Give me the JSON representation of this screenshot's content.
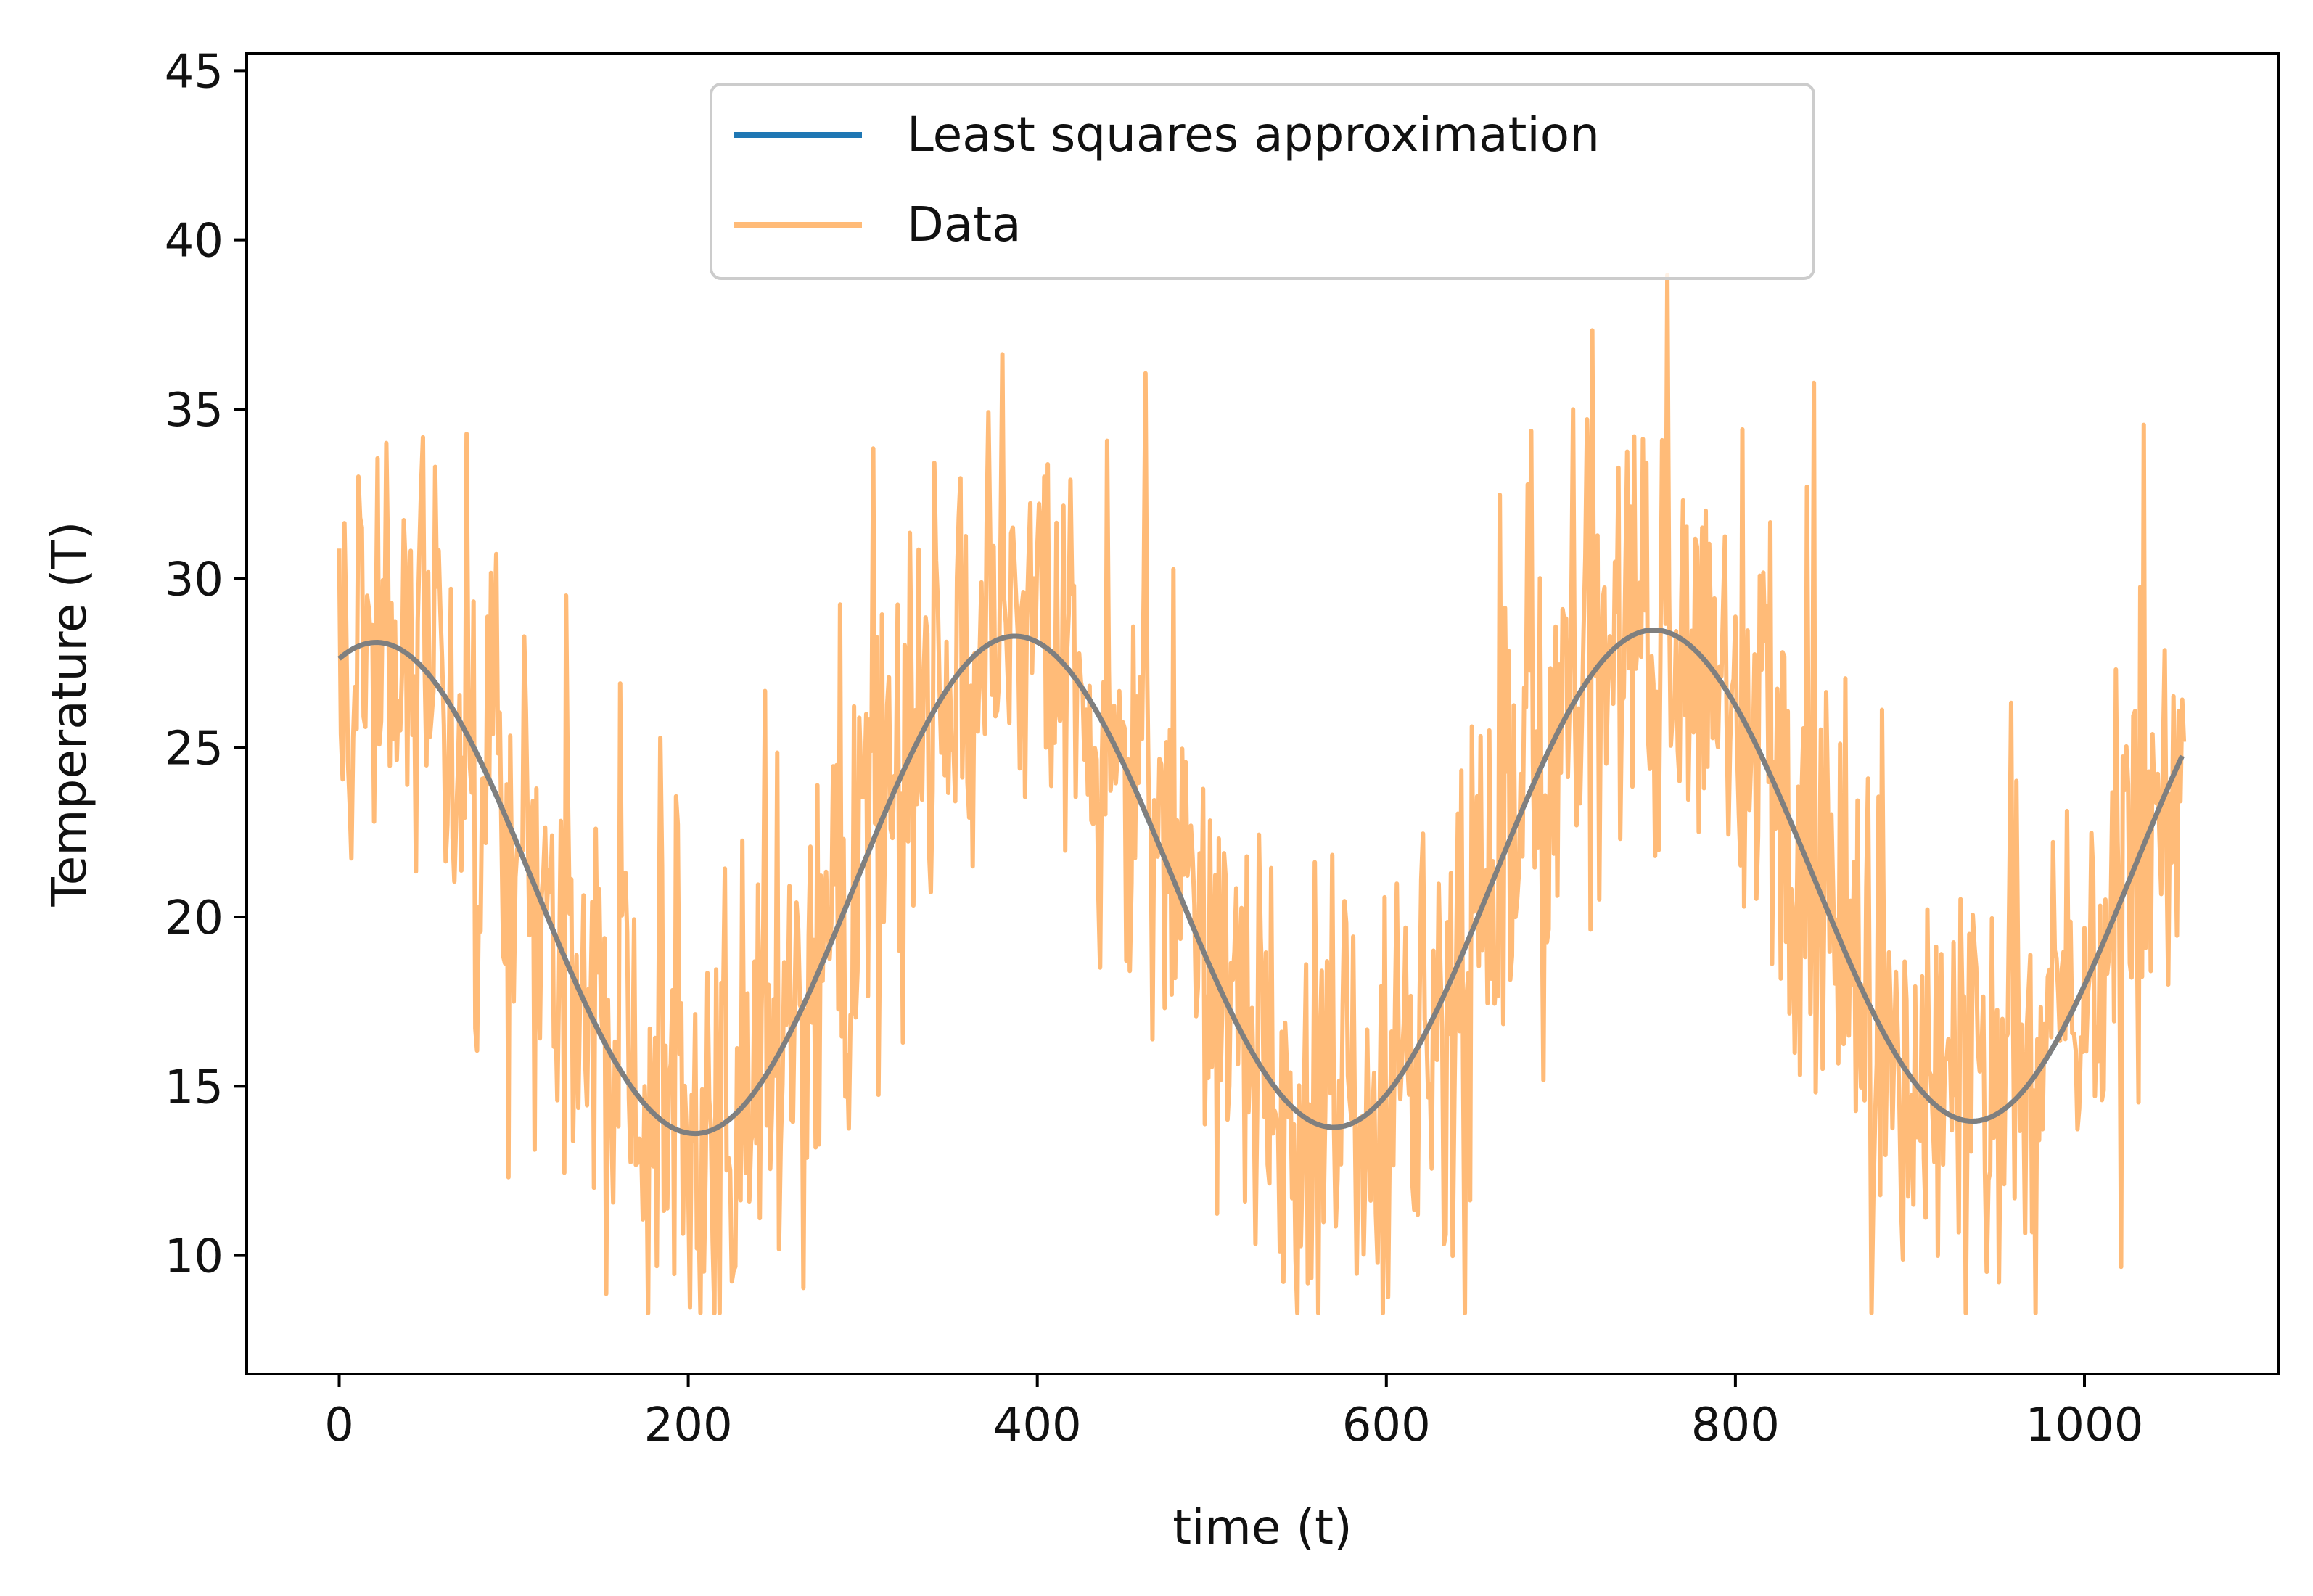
{
  "chart_data": {
    "type": "line",
    "title": "",
    "xlabel": "time (t)",
    "ylabel": "Temperature (T)",
    "xlim": [
      -53,
      1111
    ],
    "ylim": [
      6.5,
      45.5
    ],
    "x_ticks": [
      0,
      200,
      400,
      600,
      800,
      1000
    ],
    "x_tick_labels": [
      "0",
      "200",
      "400",
      "600",
      "800",
      "1000"
    ],
    "y_ticks": [
      10,
      15,
      20,
      25,
      30,
      35,
      40,
      45
    ],
    "y_tick_labels": [
      "10",
      "15",
      "20",
      "25",
      "30",
      "35",
      "40",
      "45"
    ],
    "legend_position": "top-center",
    "series": [
      {
        "name": "Least squares approximation",
        "color": "#1f77b4",
        "kind": "fit",
        "model": {
          "mean": 20.8,
          "amplitude": 7.3,
          "period": 366,
          "phase_peak_t": 21,
          "slope": 0.0005,
          "t_end": 1057
        },
        "x": [
          0,
          50,
          100,
          150,
          200,
          250,
          300,
          350,
          388,
          450,
          500,
          550,
          568,
          600,
          650,
          700,
          753,
          800,
          850,
          900,
          932,
          1000,
          1057
        ],
        "y": [
          27.0,
          26.8,
          23.0,
          17.6,
          13.1,
          14.5,
          19.8,
          25.7,
          28.1,
          25.3,
          19.6,
          14.2,
          13.6,
          14.7,
          20.0,
          25.9,
          28.6,
          26.9,
          21.5,
          15.9,
          14.1,
          18.1,
          25.4
        ]
      },
      {
        "name": "Data",
        "color": "#ffbb78",
        "kind": "noisy",
        "noise_sd": 3.5,
        "x_range": [
          0,
          1057
        ],
        "points_count": 1058,
        "observed_min": 8.3,
        "observed_max": 43.6
      }
    ],
    "overlay_color": "#7f7f7f"
  }
}
